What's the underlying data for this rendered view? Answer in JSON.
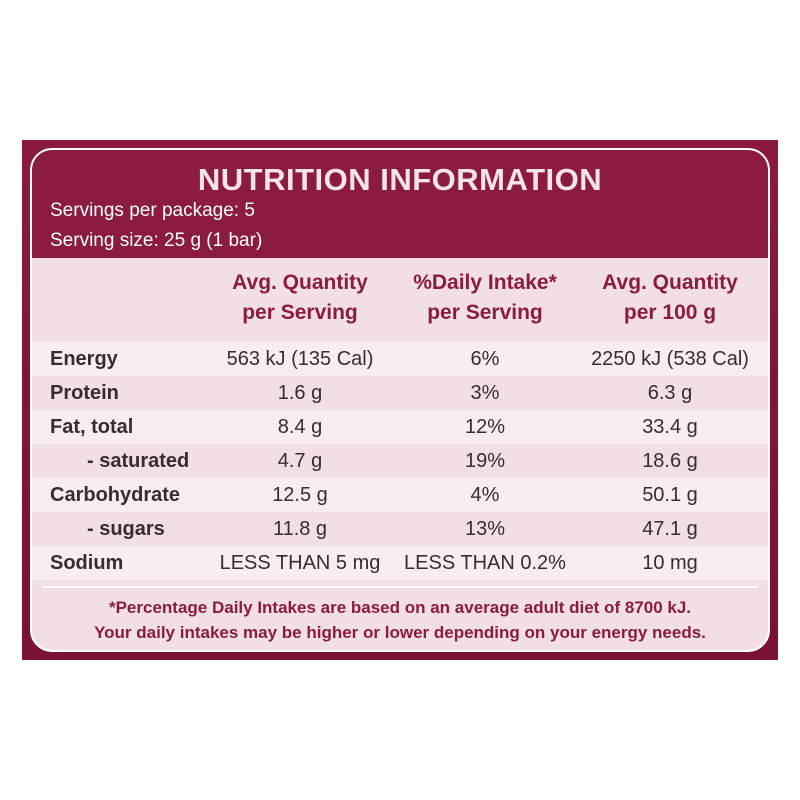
{
  "header": {
    "title": "NUTRITION INFORMATION",
    "servings": [
      "Servings per package: 5",
      "Serving size: 25 g (1 bar)"
    ]
  },
  "table": {
    "columns": [
      [
        "Avg. Quantity",
        "per Serving"
      ],
      [
        "%Daily Intake*",
        "per Serving"
      ],
      [
        "Avg. Quantity",
        "per 100 g"
      ]
    ],
    "rows": [
      [
        "Energy",
        "563 kJ (135 Cal)",
        "6%",
        "2250 kJ (538 Cal)"
      ],
      [
        "Protein",
        "1.6 g",
        "3%",
        "6.3 g"
      ],
      [
        "Fat, total",
        "8.4 g",
        "12%",
        "33.4 g"
      ],
      [
        "- saturated",
        "4.7 g",
        "19%",
        "18.6 g"
      ],
      [
        "Carbohydrate",
        "12.5 g",
        "4%",
        "50.1 g"
      ],
      [
        "- sugars",
        "11.8 g",
        "13%",
        "47.1 g"
      ],
      [
        "Sodium",
        "LESS THAN 5 mg",
        "LESS THAN 0.2%",
        "10 mg"
      ]
    ]
  },
  "footnote": [
    "*Percentage Daily Intakes are based on an average adult diet of 8700 kJ.",
    "Your daily intakes may be higher or lower depending on your energy needs."
  ]
}
